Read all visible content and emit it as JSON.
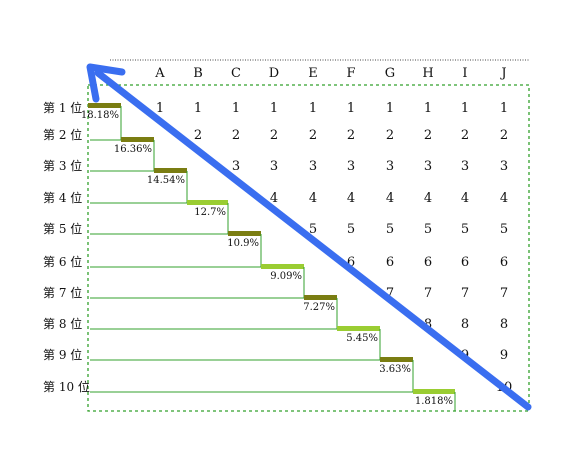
{
  "chart_data": {
    "type": "table",
    "columns": [
      "A",
      "B",
      "C",
      "D",
      "E",
      "F",
      "G",
      "H",
      "I",
      "J"
    ],
    "row_labels": [
      "第 1 位",
      "第 2 位",
      "第 3 位",
      "第 4 位",
      "第 5 位",
      "第 6 位",
      "第 7 位",
      "第 8 位",
      "第 9 位",
      "第 10 位"
    ],
    "percentages": [
      "18.18%",
      "16.36%",
      "14.54%",
      "12.7%",
      "10.9%",
      "9.09%",
      "7.27%",
      "5.45%",
      "3.63%",
      "1.818%"
    ],
    "percentage_values": [
      18.18,
      16.36,
      14.54,
      12.7,
      10.9,
      9.09,
      7.27,
      5.45,
      3.63,
      1.818
    ],
    "cells_rule": "column k (1-based) lists ranks 1..k",
    "step_colors": [
      "#7a7d12",
      "#7a7d12",
      "#7a7d12",
      "#9acd32",
      "#7a7d12",
      "#9acd32",
      "#7a7d12",
      "#9acd32",
      "#7a7d12",
      "#9acd32"
    ],
    "guide_color": "#33a02c",
    "arrow_color": "#3a6ef0",
    "border_style": "dashed green",
    "grid": false
  }
}
